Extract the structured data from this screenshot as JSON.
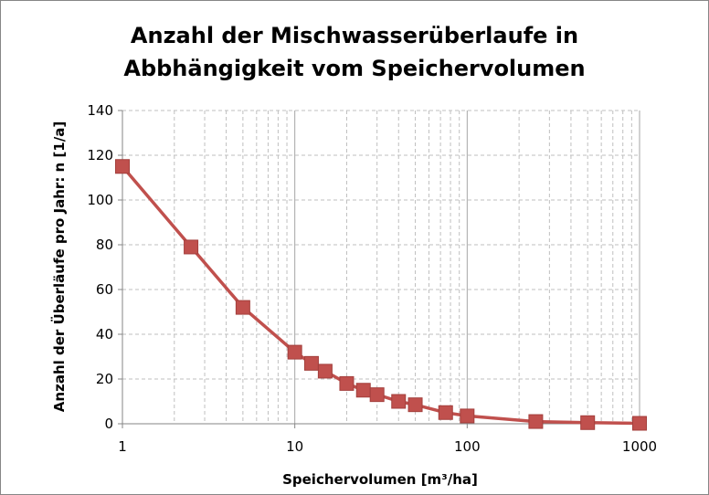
{
  "chart_data": {
    "type": "line",
    "title_line1": "Anzahl der Mischwasserüberlaufe in",
    "title_line2": "Abbhängigkeit vom Speichervolumen",
    "xlabel": "Speichervolumen [m³/ha]",
    "ylabel": "Anzahl der Überläufe pro Jahr: n [1/a]",
    "x_scale": "log",
    "xlim": [
      1,
      1000
    ],
    "ylim": [
      0,
      140
    ],
    "x_ticks": [
      "1",
      "10",
      "100",
      "1000"
    ],
    "y_ticks": [
      "0",
      "20",
      "40",
      "60",
      "80",
      "100",
      "120",
      "140"
    ],
    "grid": true,
    "legend": "none",
    "series": [
      {
        "color": "#c0504d",
        "marker": "square",
        "x": [
          1,
          2.5,
          5,
          10,
          12.5,
          15,
          20,
          25,
          30,
          40,
          50,
          75,
          100,
          250,
          500,
          1000
        ],
        "values": [
          115,
          79,
          52,
          32,
          27,
          23.5,
          18,
          15,
          13,
          10,
          8.5,
          5,
          3.5,
          1,
          0.5,
          0.2
        ]
      }
    ]
  }
}
